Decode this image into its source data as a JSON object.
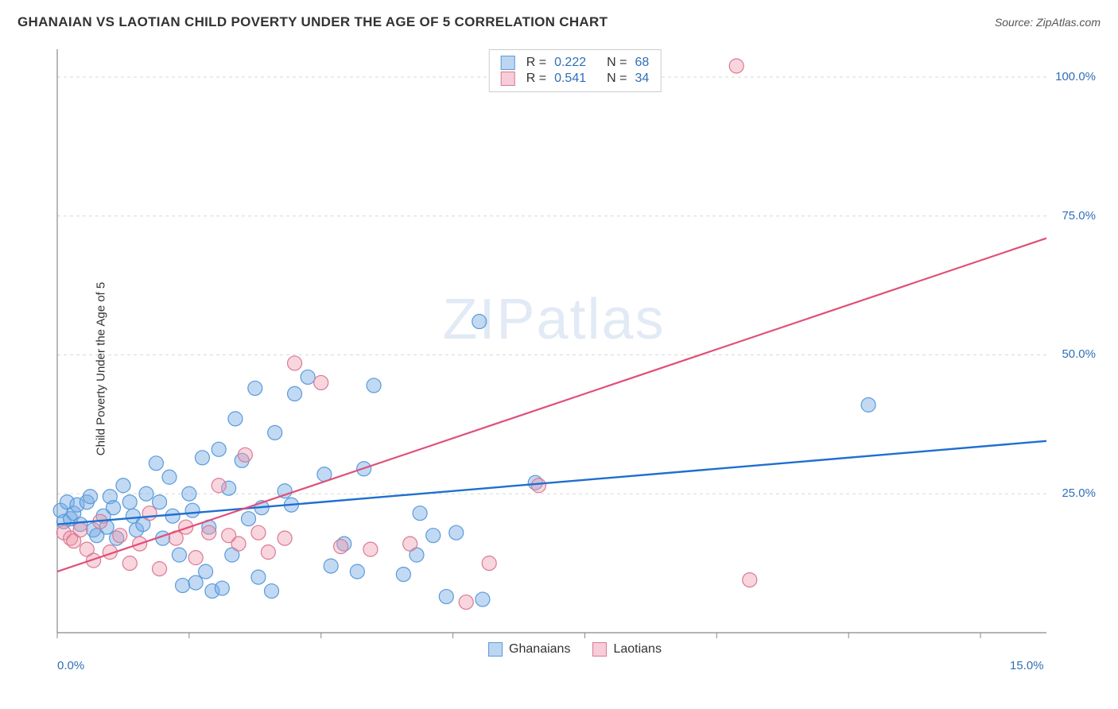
{
  "title": "GHANAIAN VS LAOTIAN CHILD POVERTY UNDER THE AGE OF 5 CORRELATION CHART",
  "source_prefix": "Source: ",
  "source_name": "ZipAtlas.com",
  "ylabel": "Child Poverty Under the Age of 5",
  "watermark_bold": "ZIP",
  "watermark_thin": "atlas",
  "chart": {
    "type": "scatter-with-regression",
    "xlim": [
      0,
      15
    ],
    "ylim": [
      0,
      105
    ],
    "x_ticks": [
      0,
      2,
      4,
      6,
      8,
      10,
      12,
      14
    ],
    "x_tick_labels": {
      "0": "0.0%",
      "15": "15.0%"
    },
    "y_gridlines": [
      25,
      50,
      75,
      100
    ],
    "y_tick_labels": {
      "25": "25.0%",
      "50": "50.0%",
      "75": "75.0%",
      "100": "100.0%"
    },
    "grid_color": "#d8d8d8",
    "grid_dash": "4 4",
    "axis_color": "#888888",
    "background": "#ffffff",
    "marker_radius": 9,
    "marker_stroke_width": 1.2,
    "series": [
      {
        "name": "Ghanaians",
        "fill": "rgba(120,170,230,0.45)",
        "stroke": "#5a9bd8",
        "swatch_fill": "#bcd6f2",
        "swatch_stroke": "#5a9bd8",
        "r": 0.222,
        "n": 68,
        "regression": {
          "x1": 0,
          "y1": 19.5,
          "x2": 15,
          "y2": 34.5,
          "color": "#1f6fd0",
          "width": 2.4
        },
        "points": [
          [
            0.05,
            22
          ],
          [
            0.1,
            20
          ],
          [
            0.15,
            23.5
          ],
          [
            0.2,
            20.5
          ],
          [
            0.25,
            21.5
          ],
          [
            0.3,
            23
          ],
          [
            0.35,
            19.5
          ],
          [
            0.45,
            23.5
          ],
          [
            0.5,
            24.5
          ],
          [
            0.55,
            18.5
          ],
          [
            0.6,
            17.5
          ],
          [
            0.7,
            21
          ],
          [
            0.75,
            19
          ],
          [
            0.8,
            24.5
          ],
          [
            0.85,
            22.5
          ],
          [
            0.9,
            17
          ],
          [
            1.0,
            26.5
          ],
          [
            1.1,
            23.5
          ],
          [
            1.15,
            21
          ],
          [
            1.2,
            18.5
          ],
          [
            1.3,
            19.5
          ],
          [
            1.35,
            25
          ],
          [
            1.5,
            30.5
          ],
          [
            1.55,
            23.5
          ],
          [
            1.6,
            17
          ],
          [
            1.7,
            28
          ],
          [
            1.75,
            21
          ],
          [
            1.85,
            14
          ],
          [
            1.9,
            8.5
          ],
          [
            2.0,
            25
          ],
          [
            2.05,
            22
          ],
          [
            2.1,
            9
          ],
          [
            2.2,
            31.5
          ],
          [
            2.25,
            11
          ],
          [
            2.3,
            19
          ],
          [
            2.35,
            7.5
          ],
          [
            2.45,
            33
          ],
          [
            2.5,
            8
          ],
          [
            2.6,
            26
          ],
          [
            2.65,
            14
          ],
          [
            2.7,
            38.5
          ],
          [
            2.8,
            31
          ],
          [
            2.9,
            20.5
          ],
          [
            3.0,
            44
          ],
          [
            3.05,
            10
          ],
          [
            3.1,
            22.5
          ],
          [
            3.25,
            7.5
          ],
          [
            3.3,
            36
          ],
          [
            3.45,
            25.5
          ],
          [
            3.55,
            23
          ],
          [
            3.6,
            43
          ],
          [
            3.8,
            46
          ],
          [
            4.05,
            28.5
          ],
          [
            4.15,
            12
          ],
          [
            4.35,
            16
          ],
          [
            4.55,
            11
          ],
          [
            4.65,
            29.5
          ],
          [
            4.8,
            44.5
          ],
          [
            5.25,
            10.5
          ],
          [
            5.45,
            14
          ],
          [
            5.5,
            21.5
          ],
          [
            5.7,
            17.5
          ],
          [
            5.9,
            6.5
          ],
          [
            6.05,
            18
          ],
          [
            6.4,
            56
          ],
          [
            6.45,
            6
          ],
          [
            7.25,
            27
          ],
          [
            12.3,
            41
          ]
        ]
      },
      {
        "name": "Laotians",
        "fill": "rgba(240,150,170,0.40)",
        "stroke": "#d97a95",
        "swatch_fill": "#f6cdd8",
        "swatch_stroke": "#d97a95",
        "r": 0.541,
        "n": 34,
        "regression": {
          "x1": 0,
          "y1": 11,
          "x2": 15,
          "y2": 71,
          "color": "#e05078",
          "width": 2.2
        },
        "points": [
          [
            0.1,
            18
          ],
          [
            0.2,
            17
          ],
          [
            0.25,
            16.5
          ],
          [
            0.35,
            18.5
          ],
          [
            0.45,
            15
          ],
          [
            0.55,
            13
          ],
          [
            0.65,
            20
          ],
          [
            0.8,
            14.5
          ],
          [
            0.95,
            17.5
          ],
          [
            1.1,
            12.5
          ],
          [
            1.25,
            16
          ],
          [
            1.4,
            21.5
          ],
          [
            1.55,
            11.5
          ],
          [
            1.8,
            17
          ],
          [
            1.95,
            19
          ],
          [
            2.1,
            13.5
          ],
          [
            2.3,
            18
          ],
          [
            2.45,
            26.5
          ],
          [
            2.6,
            17.5
          ],
          [
            2.75,
            16
          ],
          [
            2.85,
            32
          ],
          [
            3.05,
            18
          ],
          [
            3.2,
            14.5
          ],
          [
            3.45,
            17
          ],
          [
            3.6,
            48.5
          ],
          [
            4.0,
            45
          ],
          [
            4.3,
            15.5
          ],
          [
            4.75,
            15
          ],
          [
            5.35,
            16
          ],
          [
            6.2,
            5.5
          ],
          [
            6.55,
            12.5
          ],
          [
            7.3,
            26.5
          ],
          [
            10.3,
            102
          ],
          [
            10.5,
            9.5
          ]
        ]
      }
    ]
  },
  "legend_top_labels": {
    "r": "R =",
    "n": "N ="
  },
  "legend_bottom": [
    "Ghanaians",
    "Laotians"
  ]
}
